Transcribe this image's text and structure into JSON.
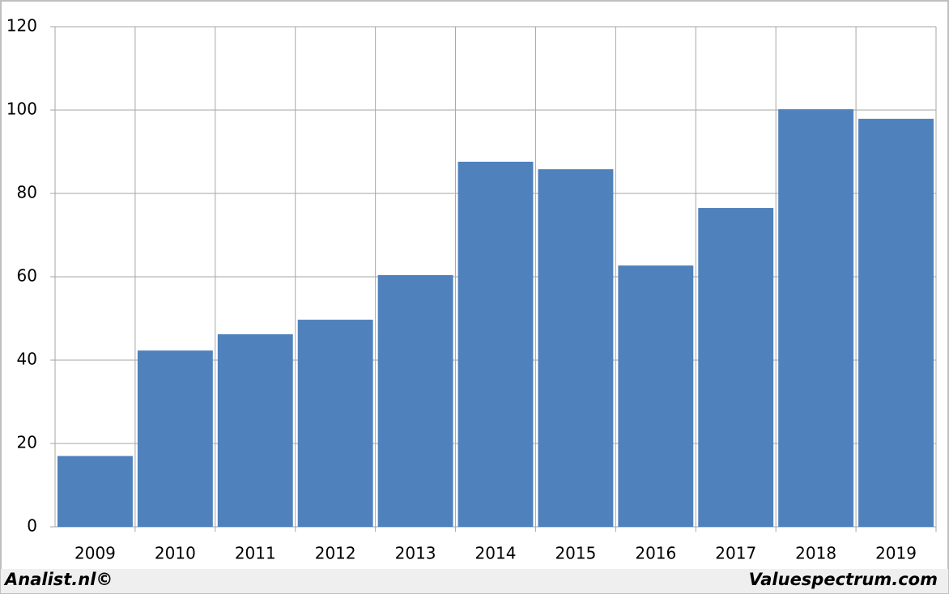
{
  "chart_data": {
    "type": "bar",
    "categories": [
      "2009",
      "2010",
      "2011",
      "2012",
      "2013",
      "2014",
      "2015",
      "2016",
      "2017",
      "2018",
      "2019"
    ],
    "values": [
      17,
      42.3,
      46.2,
      49.7,
      60.4,
      87.6,
      85.8,
      62.7,
      76.5,
      100.2,
      97.9
    ],
    "color": "#4f81bd",
    "ylim": [
      0,
      120
    ],
    "yticks": [
      0,
      20,
      40,
      60,
      80,
      100,
      120
    ],
    "grid": true,
    "annotations": [
      "Analist.nl©",
      "Valuespectrum.com"
    ]
  }
}
